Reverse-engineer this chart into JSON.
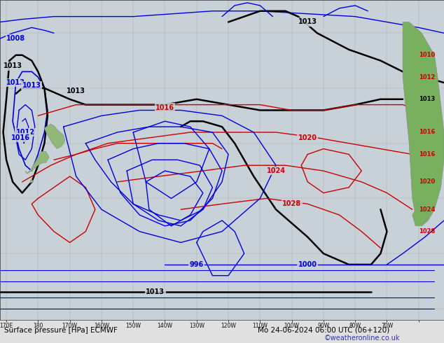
{
  "background_color": "#c8d0d8",
  "land_color_nz": "#90b878",
  "land_color_sa": "#78b060",
  "land_color_dark": "#506840",
  "bottom_bar_color": "#e0e0e0",
  "isobar_blue": "#0000dd",
  "isobar_red": "#cc0000",
  "isobar_black": "#000000",
  "figsize": [
    6.34,
    4.9
  ],
  "dpi": 100,
  "title": "Surface pressure [HPa] ECMWF",
  "date_label": "Mo 24-06-2024 06:00 UTC (06+120)",
  "credit": "©weatheronline.co.uk",
  "lon_min": 158,
  "lon_max": 298,
  "lat_min": -72,
  "lat_max": -14
}
